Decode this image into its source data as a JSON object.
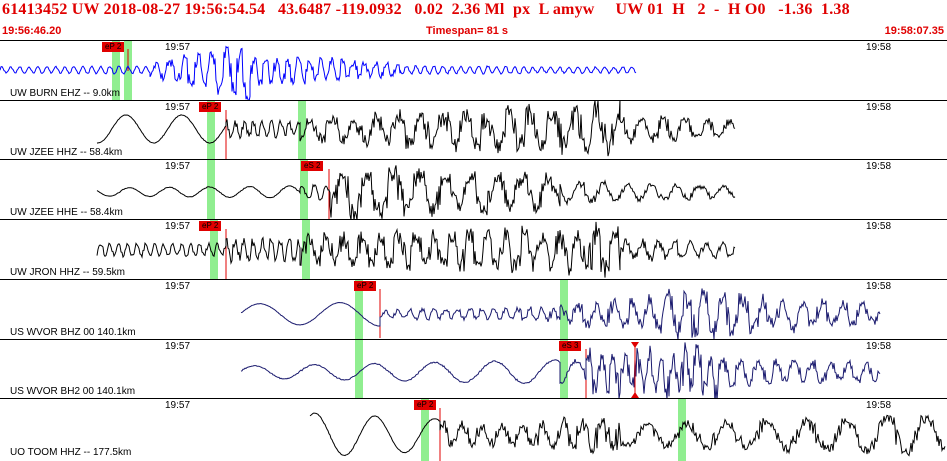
{
  "header": {
    "title_line": "61413452 UW 2018-08-27 19:56:54.54   43.6487 -119.0932   0.02  2.36 Ml  px  L amyw     UW 01  H   2  -  H O0   -1.36  1.38",
    "start_time": "19:56:46.20",
    "timespan": "Timespan=  81 s",
    "end_time": "19:58:07.35"
  },
  "time_labels": {
    "left": "19:57",
    "right": "19:58"
  },
  "colors": {
    "header_red": "#e00000",
    "pick_red": "#e00000",
    "pick_green": "#90ee90",
    "trace_blue": "#0000ff",
    "trace_navy": "#1a1a6e",
    "trace_black": "#000000"
  },
  "channels": [
    {
      "label": "UW BURN EHZ -- 9.0km",
      "pick": "eP 2",
      "color": "blue"
    },
    {
      "label": "UW JZEE HHZ -- 58.4km",
      "pick": "eP 2",
      "color": "black"
    },
    {
      "label": "UW JZEE HHE -- 58.4km",
      "pick": "eS 2",
      "color": "black"
    },
    {
      "label": "UW JRON HHZ -- 59.5km",
      "pick": "eP 2",
      "color": "black"
    },
    {
      "label": "US WVOR BHZ 00 140.1km",
      "pick": "eP 2",
      "color": "navy"
    },
    {
      "label": "US WVOR BH2 00 140.1km",
      "pick": "eS 3",
      "color": "navy"
    },
    {
      "label": "UO TOOM HHZ -- 177.5km",
      "pick": "eP 2",
      "color": "black"
    }
  ]
}
